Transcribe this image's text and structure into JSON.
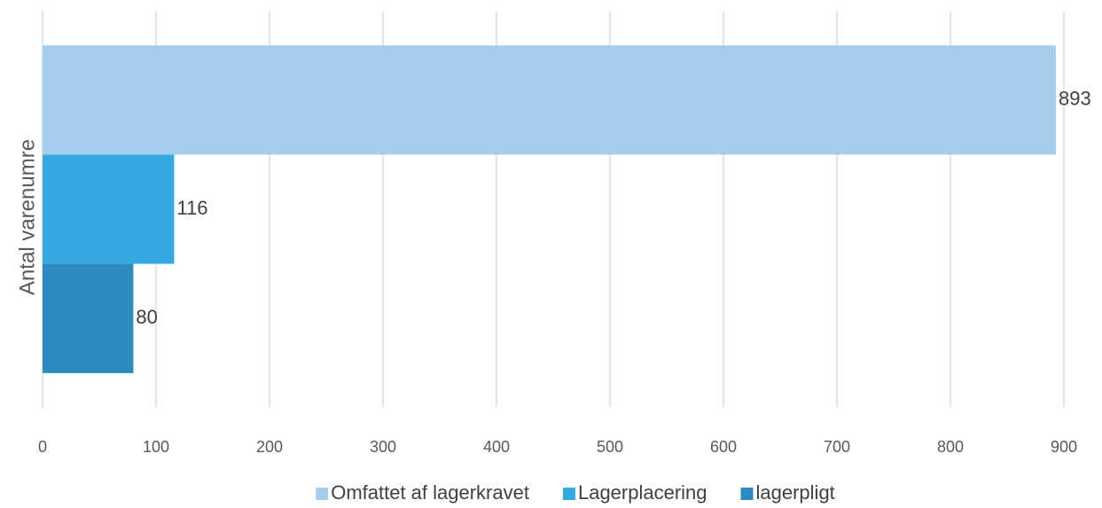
{
  "chart_data": {
    "type": "bar",
    "orientation": "horizontal",
    "y_label": "Antal varenumre",
    "categories": [
      null
    ],
    "series": [
      {
        "name": "Omfattet af lagerkravet",
        "color": "#a6cdec",
        "values": [
          893
        ]
      },
      {
        "name": "Lagerplacering",
        "color": "#36a9e1",
        "values": [
          116
        ]
      },
      {
        "name": "lagerpligt",
        "color": "#2b8bbf",
        "values": [
          80
        ]
      }
    ],
    "xlim": [
      0,
      900
    ],
    "xticks": [
      0,
      100,
      200,
      300,
      400,
      500,
      600,
      700,
      800,
      900
    ],
    "grid": true,
    "legend": "bottom"
  }
}
